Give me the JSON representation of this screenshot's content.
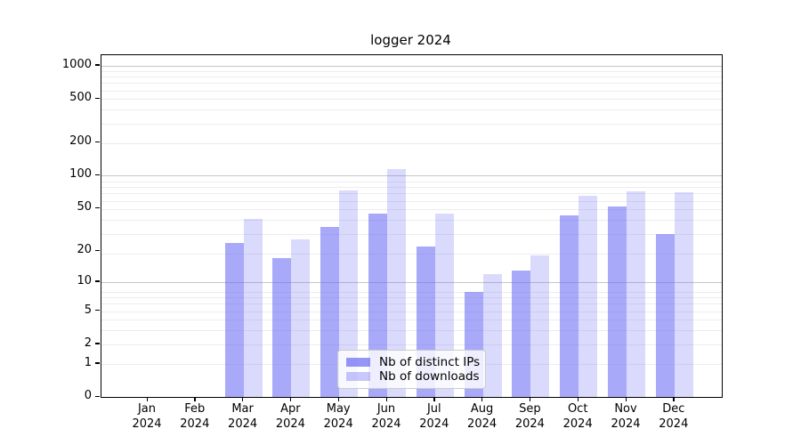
{
  "chart_data": {
    "type": "bar",
    "title": "logger 2024",
    "categories": [
      "Jan 2024",
      "Feb 2024",
      "Mar 2024",
      "Apr 2024",
      "May 2024",
      "Jun 2024",
      "Jul 2024",
      "Aug 2024",
      "Sep 2024",
      "Oct 2024",
      "Nov 2024",
      "Dec 2024"
    ],
    "series": [
      {
        "name": "Nb of distinct IPs",
        "values": [
          0,
          0,
          24,
          17,
          34,
          45,
          22,
          8,
          13,
          43,
          52,
          29
        ],
        "color": "#6a6af4",
        "alpha": 0.58
      },
      {
        "name": "Nb of downloads",
        "values": [
          0,
          0,
          40,
          26,
          74,
          115,
          45,
          12,
          18,
          65,
          72,
          71
        ],
        "color": "#6a6af4",
        "alpha": 0.25
      }
    ],
    "yscale": "log1p",
    "yticks": [
      0,
      1,
      2,
      5,
      10,
      20,
      50,
      100,
      200,
      500,
      1000
    ],
    "ylim": [
      0,
      1250
    ],
    "xlabel": "",
    "ylabel": "",
    "grid": "horizontal, log minors",
    "legend_position": "lower center (inside axes)"
  },
  "colors": {
    "bar_base": "#6a6af4",
    "grid_major": "#c6c6c6",
    "grid_minor": "#ececec",
    "spine": "#000000",
    "legend_border": "#cbcbcb"
  }
}
